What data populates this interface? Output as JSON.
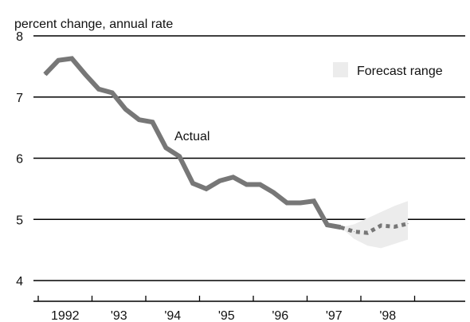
{
  "chart_data": {
    "type": "line",
    "ylabel": "percent change, annual rate",
    "ylim": [
      4,
      8
    ],
    "yticks": [
      4,
      5,
      6,
      7,
      8
    ],
    "grid": true,
    "x_tick_labels": [
      "1992",
      "'93",
      "'94",
      "'95",
      "'96",
      "'97",
      "'98"
    ],
    "legend": {
      "label": "Forecast range",
      "position": "top-right"
    },
    "annotations": [
      {
        "text": "Actual"
      }
    ],
    "series": [
      {
        "name": "Actual",
        "style": "solid",
        "color": "#777777",
        "x": [
          "1992Q1",
          "1992Q2",
          "1992Q3",
          "1992Q4",
          "1993Q1",
          "1993Q2",
          "1993Q3",
          "1993Q4",
          "1994Q1",
          "1994Q2",
          "1994Q3",
          "1994Q4",
          "1995Q1",
          "1995Q2",
          "1995Q3",
          "1995Q4",
          "1996Q1",
          "1996Q2",
          "1996Q3",
          "1996Q4",
          "1997Q1",
          "1997Q2",
          "1997Q3"
        ],
        "values": [
          7.37,
          7.6,
          7.63,
          7.37,
          7.13,
          7.07,
          6.8,
          6.63,
          6.59,
          6.17,
          6.03,
          5.59,
          5.5,
          5.63,
          5.69,
          5.57,
          5.57,
          5.44,
          5.27,
          5.27,
          5.3,
          4.91,
          4.87
        ]
      },
      {
        "name": "Forecast",
        "style": "dotted",
        "color": "#777777",
        "x": [
          "1997Q3",
          "1997Q4",
          "1998Q1",
          "1998Q2",
          "1998Q3",
          "1998Q4"
        ],
        "values": [
          4.87,
          4.8,
          4.78,
          4.9,
          4.88,
          4.93
        ]
      }
    ],
    "forecast_range": {
      "color": "#ececec",
      "x": [
        "1997Q3",
        "1997Q4",
        "1998Q1",
        "1998Q2",
        "1998Q3",
        "1998Q4"
      ],
      "upper": [
        4.87,
        4.92,
        5.02,
        5.12,
        5.22,
        5.3
      ],
      "lower": [
        4.87,
        4.68,
        4.57,
        4.53,
        4.6,
        4.67
      ]
    }
  }
}
